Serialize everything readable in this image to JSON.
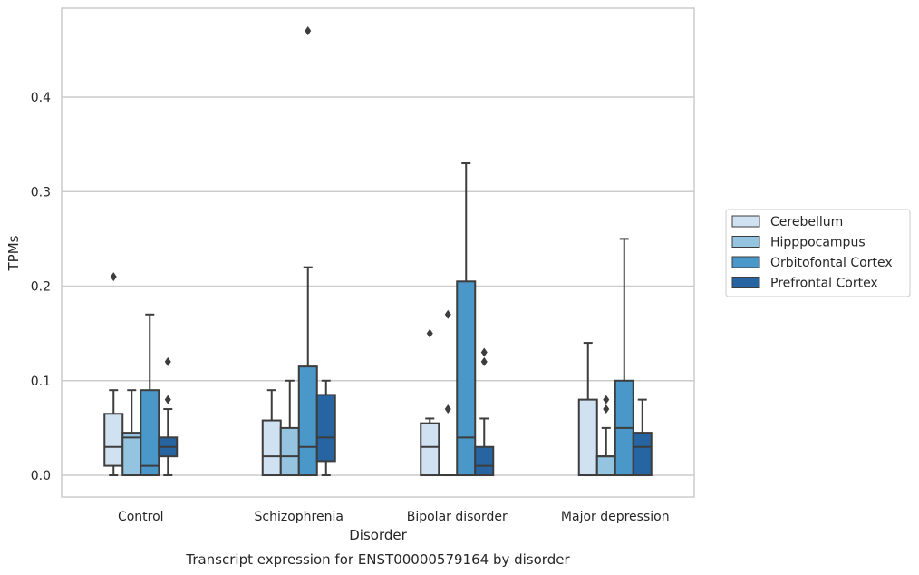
{
  "chart_data": {
    "type": "boxplot",
    "title": "Transcript expression for ENST00000579164 by disorder",
    "xlabel": "Disorder",
    "ylabel": "TPMs",
    "ylim": [
      -0.023,
      0.494
    ],
    "yticks": [
      0.0,
      0.1,
      0.2,
      0.3,
      0.4
    ],
    "ytick_labels": [
      "0.0",
      "0.1",
      "0.2",
      "0.3",
      "0.4"
    ],
    "grid": "horizontal",
    "legend_position": "right",
    "categories": [
      "Control",
      "Schizophrenia",
      "Bipolar disorder",
      "Major depression"
    ],
    "series": [
      {
        "name": "Cerebellum",
        "color": "#d0e1f2",
        "boxes": [
          {
            "whislo": 0.0,
            "q1": 0.01,
            "med": 0.03,
            "q3": 0.065,
            "whishi": 0.09,
            "fliers": [
              0.21
            ]
          },
          {
            "whislo": 0.0,
            "q1": 0.0,
            "med": 0.02,
            "q3": 0.058,
            "whishi": 0.09,
            "fliers": []
          },
          {
            "whislo": 0.0,
            "q1": 0.0,
            "med": 0.03,
            "q3": 0.055,
            "whishi": 0.06,
            "fliers": [
              0.15
            ]
          },
          {
            "whislo": 0.0,
            "q1": 0.0,
            "med": 0.0,
            "q3": 0.08,
            "whishi": 0.14,
            "fliers": []
          }
        ]
      },
      {
        "name": "Hipppocampus",
        "color": "#94c4df",
        "boxes": [
          {
            "whislo": 0.0,
            "q1": 0.0,
            "med": 0.04,
            "q3": 0.045,
            "whishi": 0.09,
            "fliers": []
          },
          {
            "whislo": 0.0,
            "q1": 0.0,
            "med": 0.02,
            "q3": 0.05,
            "whishi": 0.1,
            "fliers": []
          },
          {
            "whislo": 0.0,
            "q1": 0.0,
            "med": 0.0,
            "q3": 0.0,
            "whishi": 0.0,
            "fliers": [
              0.07,
              0.17
            ]
          },
          {
            "whislo": 0.0,
            "q1": 0.0,
            "med": 0.02,
            "q3": 0.02,
            "whishi": 0.05,
            "fliers": [
              0.07,
              0.08
            ]
          }
        ]
      },
      {
        "name": "Orbitofontal Cortex",
        "color": "#4a98c9",
        "boxes": [
          {
            "whislo": 0.0,
            "q1": 0.0,
            "med": 0.01,
            "q3": 0.09,
            "whishi": 0.17,
            "fliers": []
          },
          {
            "whislo": 0.0,
            "q1": 0.0,
            "med": 0.03,
            "q3": 0.115,
            "whishi": 0.22,
            "fliers": [
              0.47
            ]
          },
          {
            "whislo": 0.0,
            "q1": 0.0,
            "med": 0.04,
            "q3": 0.205,
            "whishi": 0.33,
            "fliers": []
          },
          {
            "whislo": 0.0,
            "q1": 0.0,
            "med": 0.05,
            "q3": 0.1,
            "whishi": 0.25,
            "fliers": []
          }
        ]
      },
      {
        "name": "Prefrontal Cortex",
        "color": "#2764a2",
        "boxes": [
          {
            "whislo": 0.0,
            "q1": 0.02,
            "med": 0.03,
            "q3": 0.04,
            "whishi": 0.07,
            "fliers": [
              0.08,
              0.12
            ]
          },
          {
            "whislo": 0.0,
            "q1": 0.015,
            "med": 0.04,
            "q3": 0.085,
            "whishi": 0.1,
            "fliers": []
          },
          {
            "whislo": 0.0,
            "q1": 0.0,
            "med": 0.01,
            "q3": 0.03,
            "whishi": 0.06,
            "fliers": [
              0.12,
              0.13
            ]
          },
          {
            "whislo": 0.0,
            "q1": 0.0,
            "med": 0.03,
            "q3": 0.045,
            "whishi": 0.08,
            "fliers": []
          }
        ]
      }
    ]
  }
}
